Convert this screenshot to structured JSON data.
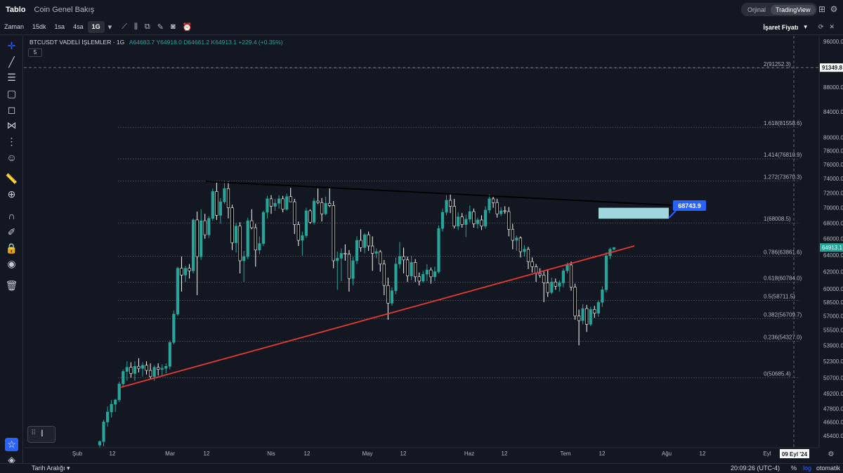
{
  "top_bar": {
    "tab_active": "Tablo",
    "tab_2": "Coin Genel Bakış",
    "mode_1": "Orjinal",
    "mode_2": "TradingView"
  },
  "toolbar": {
    "time_label": "Zaman",
    "intervals": [
      "15dk",
      "1sa",
      "4sa",
      "1G"
    ],
    "active_interval": "1G",
    "price_source": "İşaret Fiyatı"
  },
  "legend": {
    "symbol": "BTCUSDT VADELİ İŞLEMLER · 1G",
    "open": "A64683.7",
    "high": "Y64918.0",
    "low": "D64661.2",
    "close": "K64913.1",
    "change": "+229.4 (+0.35%)",
    "indicator_count": "5"
  },
  "bottom_bar": {
    "range_label": "Tarih Aralığı",
    "time": "20:09:26 (UTC-4)",
    "percent": "%",
    "log": "log",
    "auto": "otomatik"
  },
  "chart_data": {
    "type": "candlestick",
    "symbol": "BTCUSDT",
    "interval": "1G",
    "y_scale": "log",
    "ylim": [
      44000,
      97000
    ],
    "y_tick_labels": [
      "96000.0",
      "88000.0",
      "84000.0",
      "80000.0",
      "78000.0",
      "76000.0",
      "74000.0",
      "72000.0",
      "70000.0",
      "68000.0",
      "66000.0",
      "64000.0",
      "62000.0",
      "60000.0",
      "58500.0",
      "57000.0",
      "55500.0",
      "53900.0",
      "52300.0",
      "50700.0",
      "49200.0",
      "47800.0",
      "46600.0",
      "45400.0"
    ],
    "x_tick_labels": [
      "Şub",
      "12",
      "Mar",
      "12",
      "Nis",
      "12",
      "May",
      "12",
      "Haz",
      "12",
      "Tem",
      "12",
      "Ağu",
      "12",
      "Eyl"
    ],
    "crosshair_date": "09 Eyl '24",
    "crosshair_price": "91349.8",
    "last_price": "64913.1",
    "fib_levels": [
      {
        "label": "2(91252.3)",
        "price": 91252.3
      },
      {
        "label": "1.618(81558.6)",
        "price": 81558.6
      },
      {
        "label": "1.414(76810.9)",
        "price": 76810.9
      },
      {
        "label": "1.272(73670.3)",
        "price": 73670.3
      },
      {
        "label": "1(68008.5)",
        "price": 68008.5
      },
      {
        "label": "0.786(63861.6)",
        "price": 63861.6
      },
      {
        "label": "0.618(60784.0)",
        "price": 60784.0
      },
      {
        "label": "0.5(58711.5)",
        "price": 58711.5
      },
      {
        "label": "0.382(56709.7)",
        "price": 56709.7
      },
      {
        "label": "0.236(54327.0)",
        "price": 54327.0
      },
      {
        "label": "0(50685.4)",
        "price": 50685.4
      }
    ],
    "price_label": "68743.9",
    "candles": [
      {
        "o": 44600,
        "h": 45000,
        "l": 44000,
        "c": 44900
      },
      {
        "o": 44900,
        "h": 46800,
        "l": 44500,
        "c": 46600
      },
      {
        "o": 46600,
        "h": 48000,
        "l": 46200,
        "c": 47500
      },
      {
        "o": 47500,
        "h": 48600,
        "l": 47000,
        "c": 48200
      },
      {
        "o": 48200,
        "h": 48700,
        "l": 47500,
        "c": 48600
      },
      {
        "o": 48600,
        "h": 50300,
        "l": 48400,
        "c": 50100
      },
      {
        "o": 50100,
        "h": 51500,
        "l": 49800,
        "c": 51300
      },
      {
        "o": 51300,
        "h": 52300,
        "l": 50400,
        "c": 51700
      },
      {
        "o": 51700,
        "h": 52200,
        "l": 50700,
        "c": 51100
      },
      {
        "o": 51100,
        "h": 52300,
        "l": 50400,
        "c": 51800
      },
      {
        "o": 51800,
        "h": 52600,
        "l": 51200,
        "c": 51600
      },
      {
        "o": 51600,
        "h": 52200,
        "l": 50800,
        "c": 51900
      },
      {
        "o": 51900,
        "h": 52300,
        "l": 51000,
        "c": 51400
      },
      {
        "o": 51400,
        "h": 52100,
        "l": 50600,
        "c": 50800
      },
      {
        "o": 50800,
        "h": 51900,
        "l": 50400,
        "c": 51700
      },
      {
        "o": 51700,
        "h": 52100,
        "l": 50900,
        "c": 51500
      },
      {
        "o": 51500,
        "h": 52000,
        "l": 50800,
        "c": 51600
      },
      {
        "o": 51600,
        "h": 52100,
        "l": 51100,
        "c": 51800
      },
      {
        "o": 51800,
        "h": 54400,
        "l": 51500,
        "c": 54200
      },
      {
        "o": 54200,
        "h": 57600,
        "l": 54000,
        "c": 57200
      },
      {
        "o": 57200,
        "h": 62600,
        "l": 57000,
        "c": 62400
      },
      {
        "o": 62400,
        "h": 63800,
        "l": 59700,
        "c": 61600
      },
      {
        "o": 61600,
        "h": 62700,
        "l": 60800,
        "c": 62400
      },
      {
        "o": 62400,
        "h": 62900,
        "l": 61200,
        "c": 62100
      },
      {
        "o": 62100,
        "h": 68600,
        "l": 61800,
        "c": 68400
      },
      {
        "o": 68400,
        "h": 69500,
        "l": 59300,
        "c": 63800
      },
      {
        "o": 63800,
        "h": 69800,
        "l": 63400,
        "c": 68300
      },
      {
        "o": 68300,
        "h": 69200,
        "l": 66000,
        "c": 66500
      },
      {
        "o": 66500,
        "h": 68900,
        "l": 66100,
        "c": 68600
      },
      {
        "o": 68600,
        "h": 72600,
        "l": 68300,
        "c": 72200
      },
      {
        "o": 72200,
        "h": 73400,
        "l": 68400,
        "c": 69000
      },
      {
        "o": 69000,
        "h": 71300,
        "l": 67900,
        "c": 70800
      },
      {
        "o": 70800,
        "h": 73700,
        "l": 70500,
        "c": 72600
      },
      {
        "o": 72600,
        "h": 73600,
        "l": 68600,
        "c": 70000
      },
      {
        "o": 70000,
        "h": 70400,
        "l": 64600,
        "c": 65500
      },
      {
        "o": 65500,
        "h": 68000,
        "l": 64300,
        "c": 67600
      },
      {
        "o": 67600,
        "h": 68100,
        "l": 61800,
        "c": 63300
      },
      {
        "o": 63300,
        "h": 64500,
        "l": 60800,
        "c": 63800
      },
      {
        "o": 63800,
        "h": 68700,
        "l": 63500,
        "c": 68300
      },
      {
        "o": 68300,
        "h": 69800,
        "l": 67200,
        "c": 67400
      },
      {
        "o": 67400,
        "h": 67900,
        "l": 62600,
        "c": 64600
      },
      {
        "o": 64600,
        "h": 66300,
        "l": 64100,
        "c": 65400
      },
      {
        "o": 65400,
        "h": 69600,
        "l": 65100,
        "c": 69400
      },
      {
        "o": 69400,
        "h": 71600,
        "l": 68600,
        "c": 71200
      },
      {
        "o": 71200,
        "h": 71700,
        "l": 69200,
        "c": 70200
      },
      {
        "o": 70200,
        "h": 71200,
        "l": 69600,
        "c": 70600
      },
      {
        "o": 70600,
        "h": 71700,
        "l": 69900,
        "c": 71200
      },
      {
        "o": 71200,
        "h": 71600,
        "l": 69400,
        "c": 69800
      },
      {
        "o": 69800,
        "h": 71900,
        "l": 69600,
        "c": 71500
      },
      {
        "o": 71500,
        "h": 72700,
        "l": 70800,
        "c": 70800
      },
      {
        "o": 70800,
        "h": 71200,
        "l": 66600,
        "c": 67800
      },
      {
        "o": 67800,
        "h": 68200,
        "l": 65100,
        "c": 65800
      },
      {
        "o": 65800,
        "h": 66900,
        "l": 63900,
        "c": 66400
      },
      {
        "o": 66400,
        "h": 70000,
        "l": 66100,
        "c": 69600
      },
      {
        "o": 69600,
        "h": 69800,
        "l": 67900,
        "c": 68100
      },
      {
        "o": 68100,
        "h": 71300,
        "l": 67800,
        "c": 70900
      },
      {
        "o": 70900,
        "h": 72600,
        "l": 70500,
        "c": 70700
      },
      {
        "o": 70700,
        "h": 71300,
        "l": 68200,
        "c": 69200
      },
      {
        "o": 69200,
        "h": 71500,
        "l": 69000,
        "c": 70600
      },
      {
        "o": 70600,
        "h": 72800,
        "l": 70100,
        "c": 70300
      },
      {
        "o": 70300,
        "h": 70900,
        "l": 62400,
        "c": 63300
      },
      {
        "o": 63300,
        "h": 64400,
        "l": 59900,
        "c": 63600
      },
      {
        "o": 63600,
        "h": 64800,
        "l": 60900,
        "c": 64200
      },
      {
        "o": 64200,
        "h": 65300,
        "l": 63300,
        "c": 64100
      },
      {
        "o": 64100,
        "h": 64600,
        "l": 59700,
        "c": 61200
      },
      {
        "o": 61200,
        "h": 63800,
        "l": 60400,
        "c": 63300
      },
      {
        "o": 63300,
        "h": 66300,
        "l": 62900,
        "c": 65800
      },
      {
        "o": 65800,
        "h": 67200,
        "l": 64400,
        "c": 64900
      },
      {
        "o": 64900,
        "h": 66700,
        "l": 64200,
        "c": 66500
      },
      {
        "o": 66500,
        "h": 66900,
        "l": 64500,
        "c": 65100
      },
      {
        "o": 65100,
        "h": 66300,
        "l": 62100,
        "c": 64200
      },
      {
        "o": 64200,
        "h": 64800,
        "l": 63600,
        "c": 64400
      },
      {
        "o": 64400,
        "h": 64600,
        "l": 62000,
        "c": 62900
      },
      {
        "o": 62900,
        "h": 63400,
        "l": 59300,
        "c": 60400
      },
      {
        "o": 60400,
        "h": 61300,
        "l": 56600,
        "c": 58400
      },
      {
        "o": 58400,
        "h": 60200,
        "l": 58100,
        "c": 59800
      },
      {
        "o": 59800,
        "h": 63700,
        "l": 59400,
        "c": 62900
      },
      {
        "o": 62900,
        "h": 65600,
        "l": 62400,
        "c": 63800
      },
      {
        "o": 63800,
        "h": 64900,
        "l": 61800,
        "c": 63400
      },
      {
        "o": 63400,
        "h": 63800,
        "l": 60800,
        "c": 61500
      },
      {
        "o": 61500,
        "h": 63900,
        "l": 61000,
        "c": 63100
      },
      {
        "o": 63100,
        "h": 63500,
        "l": 60800,
        "c": 61400
      },
      {
        "o": 61400,
        "h": 61900,
        "l": 60400,
        "c": 60900
      },
      {
        "o": 60900,
        "h": 62100,
        "l": 60700,
        "c": 61700
      },
      {
        "o": 61700,
        "h": 62900,
        "l": 60900,
        "c": 62200
      },
      {
        "o": 62200,
        "h": 62500,
        "l": 60600,
        "c": 61400
      },
      {
        "o": 61400,
        "h": 62600,
        "l": 60900,
        "c": 62000
      },
      {
        "o": 62000,
        "h": 67700,
        "l": 61800,
        "c": 67300
      },
      {
        "o": 67300,
        "h": 69900,
        "l": 66900,
        "c": 69400
      },
      {
        "o": 69400,
        "h": 71700,
        "l": 69000,
        "c": 71000
      },
      {
        "o": 71000,
        "h": 71800,
        "l": 69300,
        "c": 70200
      },
      {
        "o": 70200,
        "h": 71200,
        "l": 67300,
        "c": 67600
      },
      {
        "o": 67600,
        "h": 69400,
        "l": 67100,
        "c": 68800
      },
      {
        "o": 68800,
        "h": 69300,
        "l": 67400,
        "c": 67800
      },
      {
        "o": 67800,
        "h": 69100,
        "l": 66200,
        "c": 68500
      },
      {
        "o": 68500,
        "h": 70300,
        "l": 68100,
        "c": 69500
      },
      {
        "o": 69500,
        "h": 69900,
        "l": 67400,
        "c": 67900
      },
      {
        "o": 67900,
        "h": 68700,
        "l": 67300,
        "c": 68400
      },
      {
        "o": 68400,
        "h": 69000,
        "l": 67100,
        "c": 67600
      },
      {
        "o": 67600,
        "h": 70200,
        "l": 67300,
        "c": 69700
      },
      {
        "o": 69700,
        "h": 71800,
        "l": 69300,
        "c": 71200
      },
      {
        "o": 71200,
        "h": 71600,
        "l": 70000,
        "c": 70700
      },
      {
        "o": 70700,
        "h": 71200,
        "l": 68700,
        "c": 69200
      },
      {
        "o": 69200,
        "h": 70100,
        "l": 68900,
        "c": 69600
      },
      {
        "o": 69600,
        "h": 70200,
        "l": 69200,
        "c": 69500
      },
      {
        "o": 69500,
        "h": 70100,
        "l": 66300,
        "c": 67200
      },
      {
        "o": 67200,
        "h": 67900,
        "l": 64700,
        "c": 65800
      },
      {
        "o": 65800,
        "h": 66400,
        "l": 64500,
        "c": 66100
      },
      {
        "o": 66100,
        "h": 66300,
        "l": 63700,
        "c": 64400
      },
      {
        "o": 64400,
        "h": 65200,
        "l": 63800,
        "c": 64700
      },
      {
        "o": 64700,
        "h": 65000,
        "l": 62300,
        "c": 63200
      },
      {
        "o": 63200,
        "h": 63700,
        "l": 61900,
        "c": 62600
      },
      {
        "o": 62600,
        "h": 62900,
        "l": 60800,
        "c": 61800
      },
      {
        "o": 61800,
        "h": 62400,
        "l": 61300,
        "c": 61600
      },
      {
        "o": 61600,
        "h": 62000,
        "l": 58500,
        "c": 60700
      },
      {
        "o": 60700,
        "h": 62300,
        "l": 59100,
        "c": 59600
      },
      {
        "o": 59600,
        "h": 61300,
        "l": 59400,
        "c": 60800
      },
      {
        "o": 60800,
        "h": 61200,
        "l": 59900,
        "c": 60300
      },
      {
        "o": 60300,
        "h": 61000,
        "l": 59700,
        "c": 60700
      },
      {
        "o": 60700,
        "h": 62400,
        "l": 60200,
        "c": 62100
      },
      {
        "o": 62100,
        "h": 63100,
        "l": 61800,
        "c": 62800
      },
      {
        "o": 62800,
        "h": 63200,
        "l": 59800,
        "c": 60200
      },
      {
        "o": 60200,
        "h": 60600,
        "l": 56600,
        "c": 57000
      },
      {
        "o": 57000,
        "h": 57700,
        "l": 53900,
        "c": 56500
      },
      {
        "o": 56500,
        "h": 58300,
        "l": 56100,
        "c": 57800
      },
      {
        "o": 57800,
        "h": 58200,
        "l": 55300,
        "c": 56100
      },
      {
        "o": 56100,
        "h": 58000,
        "l": 55900,
        "c": 57700
      },
      {
        "o": 57700,
        "h": 58100,
        "l": 56800,
        "c": 57300
      },
      {
        "o": 57300,
        "h": 58700,
        "l": 56900,
        "c": 58500
      },
      {
        "o": 58500,
        "h": 60300,
        "l": 58000,
        "c": 59900
      },
      {
        "o": 59900,
        "h": 64300,
        "l": 59600,
        "c": 63900
      },
      {
        "o": 63900,
        "h": 64900,
        "l": 63500,
        "c": 64700
      },
      {
        "o": 64700,
        "h": 64918,
        "l": 64600,
        "c": 64913
      }
    ]
  }
}
